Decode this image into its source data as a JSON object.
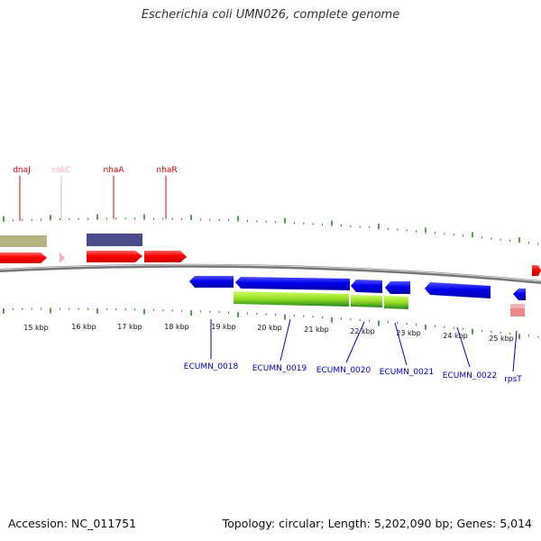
{
  "header": {
    "title": "Escherichia coli UMN026, complete genome"
  },
  "footer": {
    "accession": "Accession: NC_011751",
    "summary": "Topology: circular; Length: 5,202,090 bp; Genes: 5,014"
  },
  "colors": {
    "gene_red": "#ff0000",
    "gene_blue": "#0000ee",
    "label_blue": "#0000cc",
    "label_red": "#dd0000",
    "label_pink": "#ffaacc",
    "tick_green": "#228822",
    "backbone": "#888888",
    "olive": "#b3b37f",
    "navy": "#4b4b8c",
    "lime": "#99dd22",
    "pink_block": "#ee8888"
  },
  "scale": {
    "labels": [
      "15 kbp",
      "16 kbp",
      "17 kbp",
      "18 kbp",
      "19 kbp",
      "20 kbp",
      "21 kbp",
      "22 kbp",
      "23 kbp",
      "24 kbp",
      "25 kbp"
    ]
  },
  "genes_top": [
    {
      "name": "dnaJ",
      "color": "#dd0000"
    },
    {
      "name": "sokC",
      "color": "#ffaacc"
    },
    {
      "name": "nhaA",
      "color": "#dd0000"
    },
    {
      "name": "nhaR",
      "color": "#dd0000"
    }
  ],
  "genes_bottom": [
    {
      "name": "ECUMN_0018"
    },
    {
      "name": "ECUMN_0019"
    },
    {
      "name": "ECUMN_0020"
    },
    {
      "name": "ECUMN_0021"
    },
    {
      "name": "ECUMN_0022"
    },
    {
      "name": "rpsT"
    }
  ]
}
